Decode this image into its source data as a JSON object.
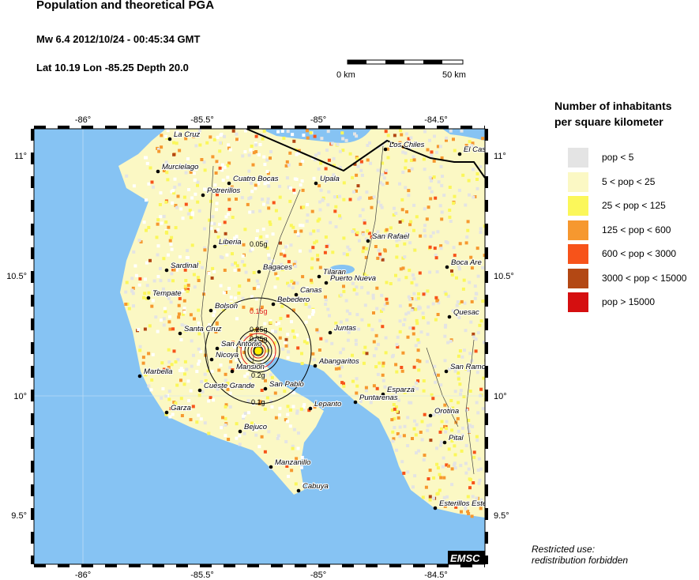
{
  "header": {
    "title": "Population and theoretical PGA",
    "event_line": "Mw 6.4  2012/10/24 - 00:45:34 GMT",
    "location_line": "Lat 10.19    Lon -85.25     Depth  20.0"
  },
  "scale_bar": {
    "start_label": "0 km",
    "end_label": "50 km"
  },
  "axes": {
    "lon_ticks": [
      "-86°",
      "-85.5°",
      "-85°",
      "-84.5°"
    ],
    "lat_ticks": [
      "11°",
      "10.5°",
      "10°",
      "9.5°"
    ]
  },
  "cities": [
    "La Cruz",
    "Murcielago",
    "Cuatro Bocas",
    "Upala",
    "Potrerillos",
    "Los Chiles",
    "El Cas",
    "Liberia",
    "San Rafael",
    "Sardinal",
    "Bagaces",
    "Boca Are",
    "Tilaran",
    "Puerto Nueva",
    "Canas",
    "Tempate",
    "Bolson",
    "Bebedero",
    "Quesac",
    "Santa Cruz",
    "Juntas",
    "San Antonio",
    "Nicoya",
    "Mansion",
    "Abangaritos",
    "San Ramo",
    "Marbella",
    "Cueste Grande",
    "San Pablo",
    "Esparza",
    "Puntarenas",
    "Lepanto",
    "Garza",
    "Orotina",
    "Bejuco",
    "Pital",
    "Manzanillo",
    "Cabuya",
    "Esterillos Este"
  ],
  "pga_labels": [
    "0.05g",
    "0.15g",
    "0.25g",
    "0.35g",
    "0.2g",
    "0.1g"
  ],
  "legend": {
    "title_line1": "Number of inhabitants",
    "title_line2": "per square kilometer",
    "items": [
      {
        "label": "pop < 5",
        "color": "#e4e4e4"
      },
      {
        "label": "5 < pop < 25",
        "color": "#fbf8c4"
      },
      {
        "label": "25 < pop < 125",
        "color": "#fbf75a"
      },
      {
        "label": "125 < pop < 600",
        "color": "#f6982f"
      },
      {
        "label": "600 < pop < 3000",
        "color": "#f7531a"
      },
      {
        "label": "3000 < pop < 15000",
        "color": "#b34814"
      },
      {
        "label": "pop > 15000",
        "color": "#d50f10"
      }
    ]
  },
  "colors": {
    "water": "#86c3f3",
    "epicenter": "#fff200",
    "pga_red": "#e0191c"
  },
  "logo": "EMSC",
  "footer": {
    "line1": "Restricted use:",
    "line2": "redistribution forbidden"
  }
}
